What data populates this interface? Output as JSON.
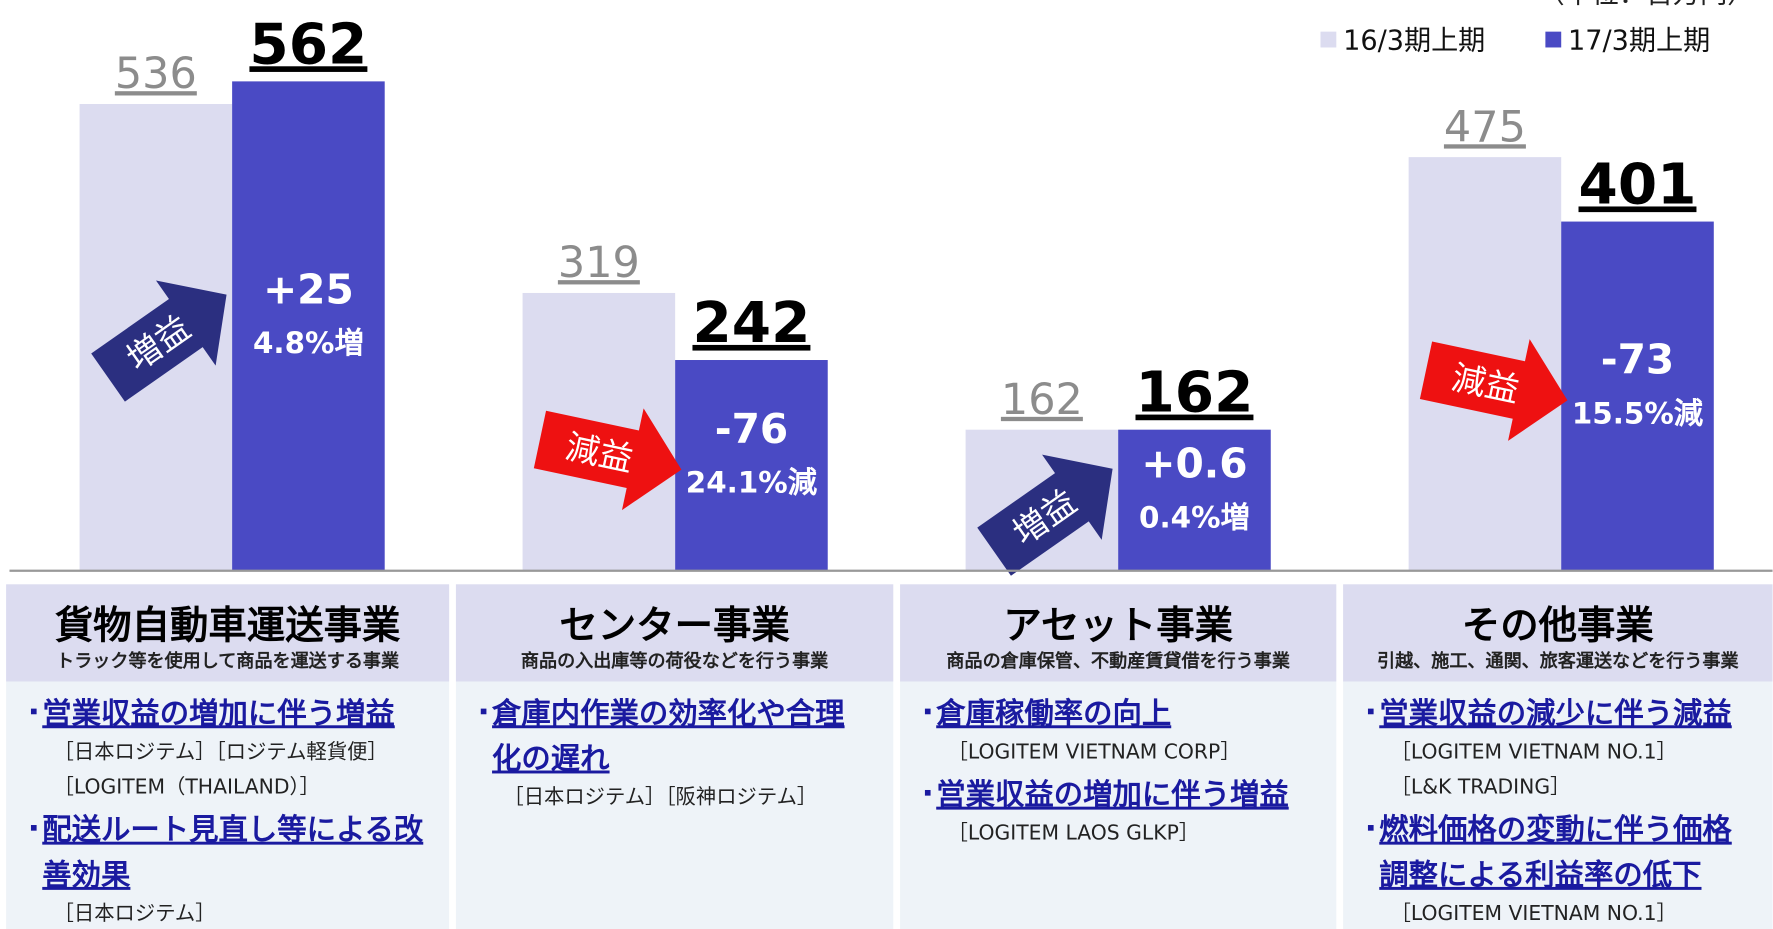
{
  "unit": "（単位：百万円）",
  "chart_data": {
    "type": "bar",
    "categories": [
      "貨物自動車運送事業",
      "センター事業",
      "アセット事業",
      "その他事業"
    ],
    "series": [
      {
        "name": "16/3期上期",
        "color": "#dcdcf0",
        "values": [
          536,
          319,
          162,
          475
        ]
      },
      {
        "name": "17/3期上期",
        "color": "#4a4ac4",
        "values": [
          562,
          242,
          162,
          401
        ]
      }
    ],
    "annotations": [
      {
        "diff": "+25",
        "change": "4.8%増",
        "badge": "増益",
        "color": "#2b2f80"
      },
      {
        "diff": "-76",
        "change": "24.1%減",
        "badge": "減益",
        "color": "#ee1111"
      },
      {
        "diff": "+0.6",
        "change": "0.4%増",
        "badge": "増益",
        "color": "#2b2f80"
      },
      {
        "diff": "-73",
        "change": "15.5%減",
        "badge": "減益",
        "color": "#ee1111"
      }
    ]
  },
  "segments": [
    {
      "subtitle": "トラック等を使用して商品を運送する事業",
      "items": [
        {
          "lines": [
            "営業収益の増加に伴う増益"
          ],
          "notes": [
            "［日本ロジテム］［ロジテム軽貨便］",
            "［LOGITEM（THAILAND）］"
          ]
        },
        {
          "lines": [
            "配送ルート見直し等による改",
            "善効果"
          ],
          "notes": [
            "［日本ロジテム］"
          ]
        }
      ]
    },
    {
      "subtitle": "商品の入出庫等の荷役などを行う事業",
      "items": [
        {
          "lines": [
            "倉庫内作業の効率化や合理",
            "化の遅れ"
          ],
          "notes": [
            "［日本ロジテム］［阪神ロジテム］"
          ]
        }
      ]
    },
    {
      "subtitle": "商品の倉庫保管、不動産賃貸借を行う事業",
      "items": [
        {
          "lines": [
            "倉庫稼働率の向上"
          ],
          "notes": [
            "［LOGITEM VIETNAM CORP］"
          ]
        },
        {
          "lines": [
            "営業収益の増加に伴う増益"
          ],
          "notes": [
            "［LOGITEM LAOS GLKP］"
          ]
        }
      ]
    },
    {
      "subtitle": "引越、施工、通関、旅客運送などを行う事業",
      "items": [
        {
          "lines": [
            "営業収益の減少に伴う減益"
          ],
          "notes": [
            "［LOGITEM VIETNAM NO.1］",
            "［L&K TRADING］"
          ]
        },
        {
          "lines": [
            "燃料価格の変動に伴う価格",
            "調整による利益率の低下"
          ],
          "notes": [
            "［LOGITEM VIETNAM NO.1］"
          ]
        }
      ]
    }
  ]
}
